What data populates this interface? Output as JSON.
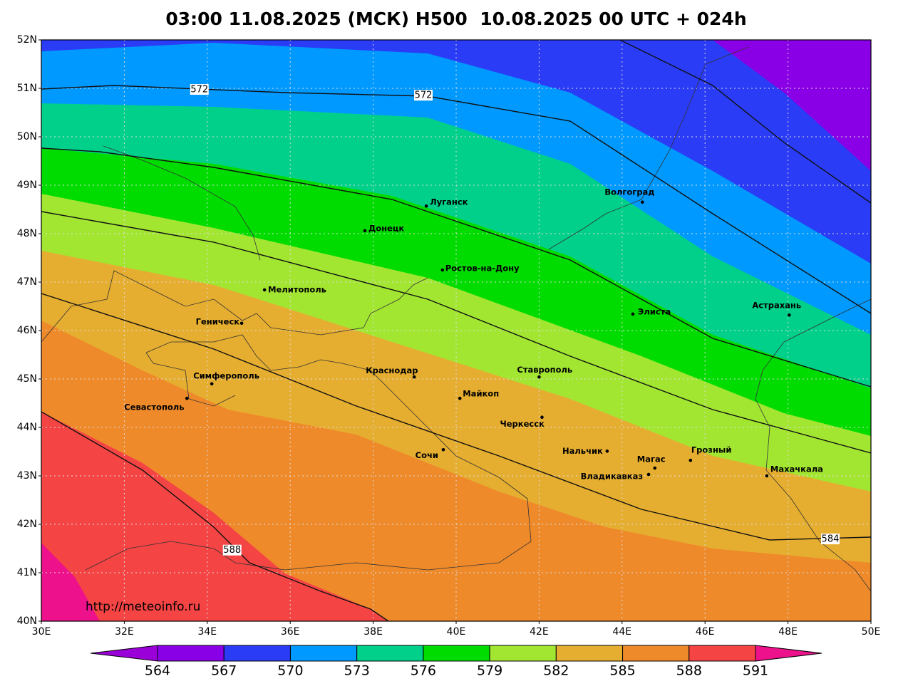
{
  "title": "03:00 11.08.2025 (МСК) H500  10.08.2025 00 UTC + 024h",
  "url": "http://meteoinfo.ru",
  "map": {
    "lonlim": [
      30,
      50
    ],
    "latlim": [
      40,
      52
    ],
    "lonticks": [
      {
        "value": 30,
        "label": "30E"
      },
      {
        "value": 32,
        "label": "32E"
      },
      {
        "value": 34,
        "label": "34E"
      },
      {
        "value": 36,
        "label": "36E"
      },
      {
        "value": 38,
        "label": "38E"
      },
      {
        "value": 40,
        "label": "40E"
      },
      {
        "value": 42,
        "label": "42E"
      },
      {
        "value": 44,
        "label": "44E"
      },
      {
        "value": 46,
        "label": "46E"
      },
      {
        "value": 48,
        "label": "48E"
      },
      {
        "value": 50,
        "label": "50E"
      }
    ],
    "latticks": [
      {
        "value": 40,
        "label": "40N"
      },
      {
        "value": 41,
        "label": "41N"
      },
      {
        "value": 42,
        "label": "42N"
      },
      {
        "value": 43,
        "label": "43N"
      },
      {
        "value": 44,
        "label": "44N"
      },
      {
        "value": 45,
        "label": "45N"
      },
      {
        "value": 46,
        "label": "46N"
      },
      {
        "value": 47,
        "label": "47N"
      },
      {
        "value": 48,
        "label": "48N"
      },
      {
        "value": 49,
        "label": "49N"
      },
      {
        "value": 50,
        "label": "50N"
      },
      {
        "value": 51,
        "label": "51N"
      },
      {
        "value": 52,
        "label": "52N"
      }
    ],
    "cities": [
      {
        "name": "Луганск",
        "lon": 39.28,
        "lat": 48.57
      },
      {
        "name": "Донецк",
        "lon": 37.8,
        "lat": 48.06
      },
      {
        "name": "Ростов-на-Дону",
        "lon": 39.67,
        "lat": 47.25
      },
      {
        "name": "Мелитополь",
        "lon": 35.38,
        "lat": 46.84
      },
      {
        "name": "Геническ",
        "lon": 34.83,
        "lat": 46.15
      },
      {
        "name": "Симферополь",
        "lon": 34.11,
        "lat": 44.9
      },
      {
        "name": "Севастополь",
        "lon": 33.51,
        "lat": 44.6
      },
      {
        "name": "Краснодар",
        "lon": 38.99,
        "lat": 45.04
      },
      {
        "name": "Майкоп",
        "lon": 40.09,
        "lat": 44.6
      },
      {
        "name": "Ставрополь",
        "lon": 42.0,
        "lat": 45.04
      },
      {
        "name": "Черкесск",
        "lon": 42.07,
        "lat": 44.21
      },
      {
        "name": "Сочи",
        "lon": 39.69,
        "lat": 43.54
      },
      {
        "name": "Нальчик",
        "lon": 43.64,
        "lat": 43.51
      },
      {
        "name": "Магас",
        "lon": 44.79,
        "lat": 43.16
      },
      {
        "name": "Владикавказ",
        "lon": 44.64,
        "lat": 43.03
      },
      {
        "name": "Грозный",
        "lon": 45.65,
        "lat": 43.32
      },
      {
        "name": "Махачкала",
        "lon": 47.49,
        "lat": 43.0
      },
      {
        "name": "Элиста",
        "lon": 44.26,
        "lat": 46.34
      },
      {
        "name": "Астрахань",
        "lon": 48.03,
        "lat": 46.32
      },
      {
        "name": "Волгоград",
        "lon": 44.49,
        "lat": 48.65
      }
    ],
    "contour_labels": [
      {
        "value": 572,
        "lon": 33.81,
        "lat": 50.97
      },
      {
        "value": 572,
        "lon": 39.21,
        "lat": 50.85
      },
      {
        "value": 588,
        "lon": 34.6,
        "lat": 41.46
      },
      {
        "value": 584,
        "lon": 49.02,
        "lat": 41.69
      }
    ]
  },
  "colorbar": {
    "levels": [
      564,
      567,
      570,
      573,
      576,
      579,
      582,
      585,
      588,
      591
    ],
    "colors": [
      "#9a00d8",
      "#8a00e6",
      "#2a3cf6",
      "#0099ff",
      "#00d08a",
      "#00dc00",
      "#a2e632",
      "#e6ae30",
      "#ef8a2a",
      "#f54444",
      "#ee118c"
    ]
  }
}
